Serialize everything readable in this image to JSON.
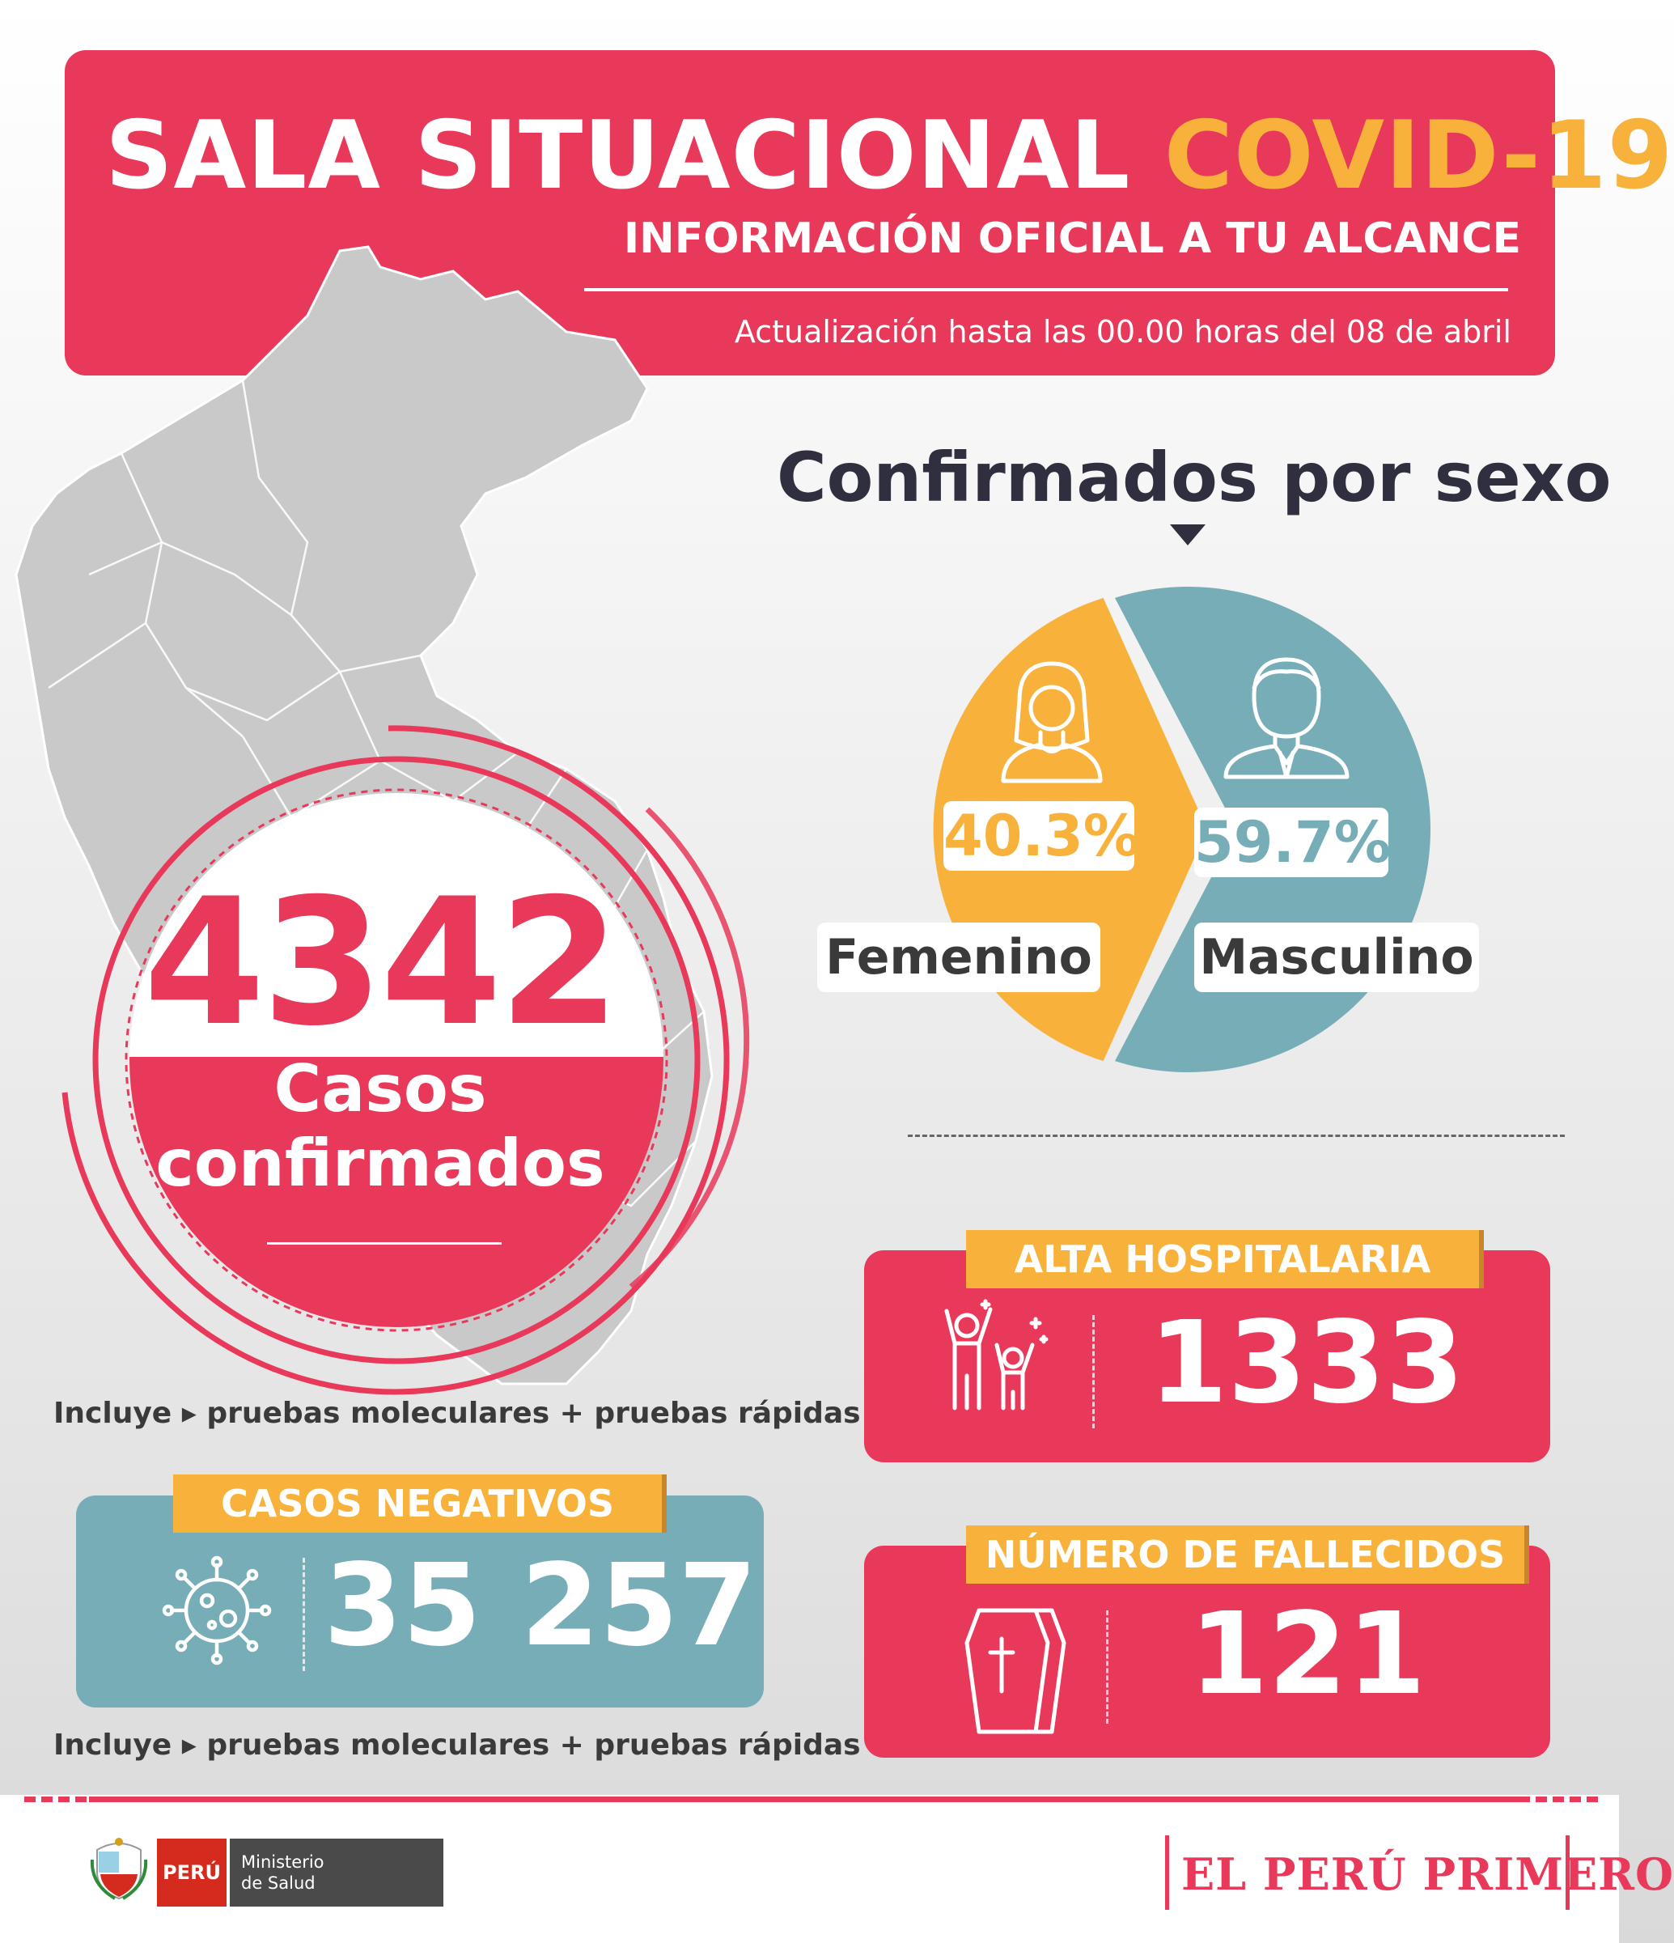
{
  "header": {
    "title_main": "SALA SITUACIONAL ",
    "title_accent": "COVID-19",
    "subtitle": "INFORMACIÓN OFICIAL A TU ALCANCE",
    "update": "Actualización hasta las 00.00 horas del 08 de abril"
  },
  "confirmed": {
    "number": "4342",
    "label_line1": "Casos",
    "label_line2": "confirmados",
    "note": "Incluye ▸ pruebas moleculares + pruebas rápidas"
  },
  "sex": {
    "title": "Confirmados por sexo",
    "female_percent": 40.3,
    "male_percent": 59.7,
    "female_percent_label": "40.3%",
    "male_percent_label": "59.7%",
    "female_label": "Femenino",
    "male_label": "Masculino",
    "female_color": "#f8b23b",
    "male_color": "#76adb7"
  },
  "alta": {
    "tab": "ALTA HOSPITALARIA",
    "number": "1333",
    "icon": "celebrating-people-icon"
  },
  "negativos": {
    "tab": "CASOS NEGATIVOS",
    "number": "35 257",
    "icon": "virus-icon",
    "note": "Incluye ▸ pruebas moleculares + pruebas rápidas"
  },
  "fallecidos": {
    "tab": "NÚMERO DE FALLECIDOS",
    "number": "121",
    "icon": "coffin-icon"
  },
  "footer": {
    "peru": "PERÚ",
    "ministerio_line1": "Ministerio",
    "ministerio_line2": "de Salud",
    "slogan": "EL PERÚ PRIMERO"
  },
  "colors": {
    "primary_red": "#e8395a",
    "accent_orange": "#f8b23b",
    "teal": "#76adb7"
  }
}
